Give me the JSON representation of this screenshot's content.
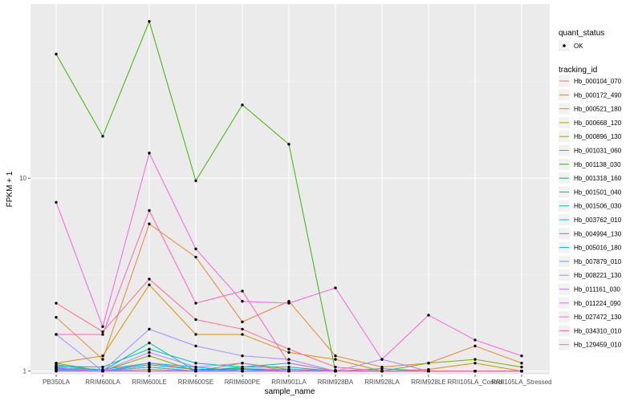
{
  "chart_data": {
    "type": "line",
    "xlabel": "sample_name",
    "ylabel": "FPKM + 1",
    "y_scale": "log10",
    "ylim": [
      0.96,
      80
    ],
    "y_ticks": [
      1,
      10
    ],
    "y_tick_labels": [
      "1",
      "10"
    ],
    "grid": true,
    "legend_position": "right",
    "categories": [
      "PB350LA",
      "RRIM600LA",
      "RRIM600LE",
      "RRIM600SE",
      "RRIM600PE",
      "RRIM901LA",
      "RRIM928BA",
      "RRIM928LA",
      "RRIM928LE",
      "RRII105LA_Control",
      "RRII105LA_Stressed"
    ],
    "shape_legend": {
      "title": "quant_status",
      "items": [
        "OK"
      ]
    },
    "color_legend_title": "tracking_id",
    "series": [
      {
        "name": "Hb_000104_070",
        "color": "#F8766D",
        "values": [
          1.05,
          1.0,
          1.1,
          1.02,
          1.03,
          1.02,
          1.01,
          1.0,
          1.0,
          1.0,
          1.0
        ]
      },
      {
        "name": "Hb_000172_490",
        "color": "#EA8331",
        "values": [
          1.9,
          1.15,
          5.8,
          3.9,
          1.8,
          2.3,
          1.2,
          1.05,
          1.1,
          1.35,
          1.1
        ]
      },
      {
        "name": "Hb_000521_180",
        "color": "#D89000",
        "values": [
          1.1,
          1.2,
          2.8,
          1.55,
          1.55,
          1.25,
          1.15,
          1.0,
          1.02,
          1.1,
          1.0
        ]
      },
      {
        "name": "Hb_000668_120",
        "color": "#C09B00",
        "values": [
          1.02,
          1.0,
          1.05,
          1.0,
          1.0,
          1.0,
          1.0,
          1.0,
          1.0,
          1.0,
          1.0
        ]
      },
      {
        "name": "Hb_000896_130",
        "color": "#A3A500",
        "values": [
          1.01,
          1.0,
          1.02,
          1.0,
          1.0,
          1.0,
          1.0,
          1.0,
          1.0,
          1.0,
          1.0
        ]
      },
      {
        "name": "Hb_001031_060",
        "color": "#7CAE00",
        "values": [
          1.1,
          1.0,
          1.2,
          1.0,
          1.1,
          1.02,
          1.0,
          1.0,
          1.1,
          1.15,
          1.05
        ]
      },
      {
        "name": "Hb_001138_030",
        "color": "#39B600",
        "values": [
          44.0,
          16.5,
          65.0,
          9.7,
          24.0,
          15.0,
          1.0,
          1.0,
          1.0,
          1.0,
          1.0
        ]
      },
      {
        "name": "Hb_001318_160",
        "color": "#00BB4E",
        "values": [
          1.0,
          1.0,
          1.0,
          1.0,
          1.0,
          1.0,
          1.0,
          1.0,
          1.0,
          1.0,
          1.0
        ]
      },
      {
        "name": "Hb_001501_040",
        "color": "#00BF7D",
        "values": [
          1.05,
          1.0,
          1.05,
          1.0,
          1.02,
          1.0,
          1.0,
          1.0,
          1.0,
          1.0,
          1.0
        ]
      },
      {
        "name": "Hb_001506_030",
        "color": "#00C1A3",
        "values": [
          1.08,
          1.0,
          1.4,
          1.0,
          1.05,
          1.05,
          1.0,
          1.03,
          1.0,
          1.0,
          1.0
        ]
      },
      {
        "name": "Hb_003762_010",
        "color": "#00BFC4",
        "values": [
          1.06,
          1.05,
          1.3,
          1.1,
          1.05,
          1.1,
          1.0,
          1.0,
          1.0,
          1.0,
          1.0
        ]
      },
      {
        "name": "Hb_004994_130",
        "color": "#00B8E7",
        "values": [
          1.04,
          1.02,
          1.1,
          1.05,
          1.0,
          1.02,
          1.0,
          1.0,
          1.0,
          1.0,
          1.0
        ]
      },
      {
        "name": "Hb_005016_180",
        "color": "#00A9FF",
        "values": [
          1.03,
          1.0,
          1.08,
          1.02,
          1.03,
          1.0,
          1.0,
          1.0,
          1.0,
          1.0,
          1.0
        ]
      },
      {
        "name": "Hb_007879_010",
        "color": "#619CFF",
        "values": [
          1.02,
          1.0,
          1.05,
          1.0,
          1.0,
          1.0,
          1.0,
          1.0,
          1.0,
          1.0,
          1.0
        ]
      },
      {
        "name": "Hb_008221_130",
        "color": "#A58AFF",
        "values": [
          1.55,
          1.0,
          1.65,
          1.35,
          1.2,
          1.15,
          1.0,
          1.15,
          1.0,
          1.0,
          1.0
        ]
      },
      {
        "name": "Hb_011161_030",
        "color": "#C77CFF",
        "values": [
          1.05,
          1.0,
          1.25,
          1.05,
          1.1,
          1.0,
          1.0,
          1.0,
          1.0,
          1.0,
          1.0
        ]
      },
      {
        "name": "Hb_011224_090",
        "color": "#E76BF3",
        "values": [
          1.0,
          1.0,
          1.0,
          1.0,
          1.0,
          1.0,
          1.0,
          1.0,
          1.0,
          1.0,
          1.0
        ]
      },
      {
        "name": "Hb_027472_130",
        "color": "#FA62DB",
        "values": [
          7.5,
          1.7,
          13.5,
          4.3,
          2.3,
          2.25,
          2.7,
          1.15,
          1.95,
          1.45,
          1.2
        ]
      },
      {
        "name": "Hb_034310_010",
        "color": "#FF62BC",
        "values": [
          1.55,
          1.55,
          6.8,
          2.25,
          2.6,
          1.1,
          1.0,
          1.0,
          1.0,
          1.0,
          1.0
        ]
      },
      {
        "name": "Hb_129459_010",
        "color": "#FF6C91",
        "values": [
          2.25,
          1.6,
          3.0,
          1.85,
          1.65,
          1.3,
          1.05,
          1.0,
          1.0,
          1.0,
          1.0
        ]
      }
    ]
  }
}
